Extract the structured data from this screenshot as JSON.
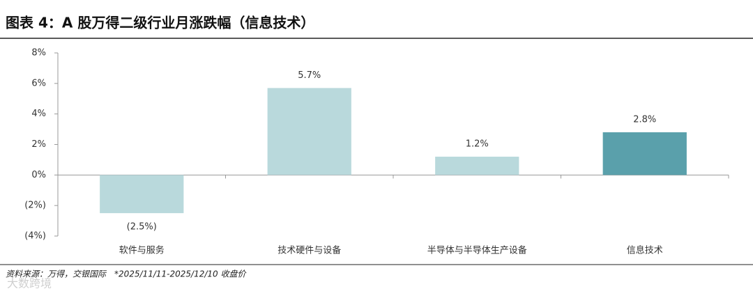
{
  "chart_data": {
    "type": "bar",
    "title": "图表 4：A 股万得二级行业月涨跌幅（信息技术）",
    "categories": [
      "软件与服务",
      "技术硬件与设备",
      "半导体与半导体生产设备",
      "信息技术"
    ],
    "values": [
      -2.5,
      5.7,
      1.2,
      2.8
    ],
    "value_labels": [
      "(2.5%)",
      "5.7%",
      "1.2%",
      "2.8%"
    ],
    "colors": [
      "#b9d9dc",
      "#b9d9dc",
      "#b9d9dc",
      "#5aa0ab"
    ],
    "ylim": [
      -4,
      8
    ],
    "yticks": [
      {
        "value": 8,
        "label": "8%"
      },
      {
        "value": 6,
        "label": "6%"
      },
      {
        "value": 4,
        "label": "4%"
      },
      {
        "value": 2,
        "label": "2%"
      },
      {
        "value": 0,
        "label": "0%"
      },
      {
        "value": -2,
        "label": "(2%)"
      },
      {
        "value": -4,
        "label": "(4%)"
      }
    ],
    "grid": false,
    "source": "资料来源：万得，交银国际　*2025/11/11-2025/12/10 收盘价",
    "watermark": "大数跨境"
  }
}
